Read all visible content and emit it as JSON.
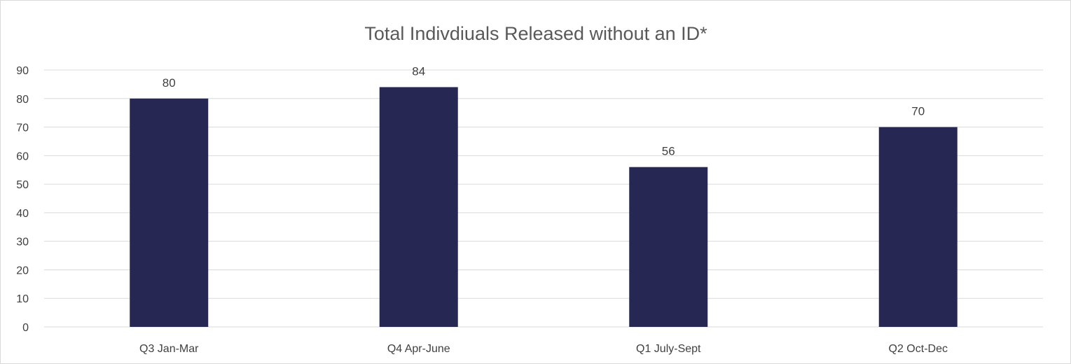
{
  "chart_data": {
    "type": "bar",
    "title": "Total Indivdiuals Released without an ID*",
    "categories": [
      "Q3 Jan-Mar",
      "Q4 Apr-June",
      "Q1 July-Sept",
      "Q2 Oct-Dec"
    ],
    "values": [
      80,
      84,
      56,
      70
    ],
    "data_labels": [
      "80",
      "84",
      "56",
      "70"
    ],
    "ylim": [
      0,
      90
    ],
    "yticks": [
      0,
      10,
      20,
      30,
      40,
      50,
      60,
      70,
      80,
      90
    ],
    "xlabel": "",
    "ylabel": "",
    "grid": true,
    "legend": "none",
    "bar_color": "#262853",
    "gridline_color": "#d9d9d9"
  }
}
